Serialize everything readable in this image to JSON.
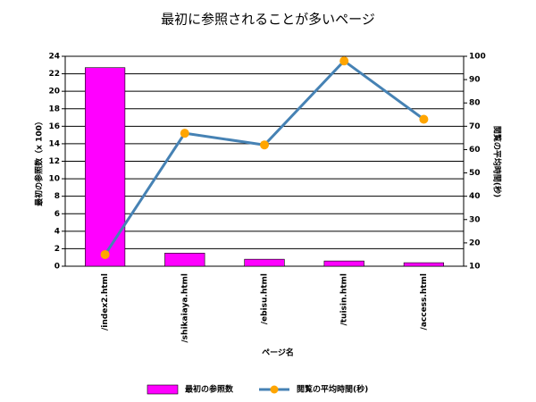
{
  "chart_data": {
    "type": "bar",
    "title": "最初に参照されることが多いページ",
    "x_label": "ページ名",
    "y_label": "最初の参照数（x 100）",
    "y2_label": "閲覧の平均時間(秒)",
    "categories": [
      "/index2.html",
      "/shikaiaya.html",
      "/ebisu.html",
      "/tuisin.html",
      "/access.html"
    ],
    "series": [
      {
        "name": "最初の参照数",
        "type": "bar",
        "color": "#ff00ff",
        "values": [
          22.7,
          1.5,
          0.8,
          0.6,
          0.4
        ]
      },
      {
        "name": "閲覧の平均時間(秒)",
        "type": "line",
        "axis": "y2",
        "color": "#4682b4",
        "marker_color": "#ffa500",
        "values": [
          15,
          67,
          62,
          98,
          73
        ]
      }
    ],
    "ylim": [
      0,
      24
    ],
    "yticks": [
      0,
      2,
      4,
      6,
      8,
      10,
      12,
      14,
      16,
      18,
      20,
      22,
      24
    ],
    "y2lim": [
      10,
      100
    ],
    "y2ticks": [
      10,
      20,
      30,
      40,
      50,
      60,
      70,
      80,
      90,
      100
    ],
    "grid": true,
    "legend": "bottom"
  }
}
